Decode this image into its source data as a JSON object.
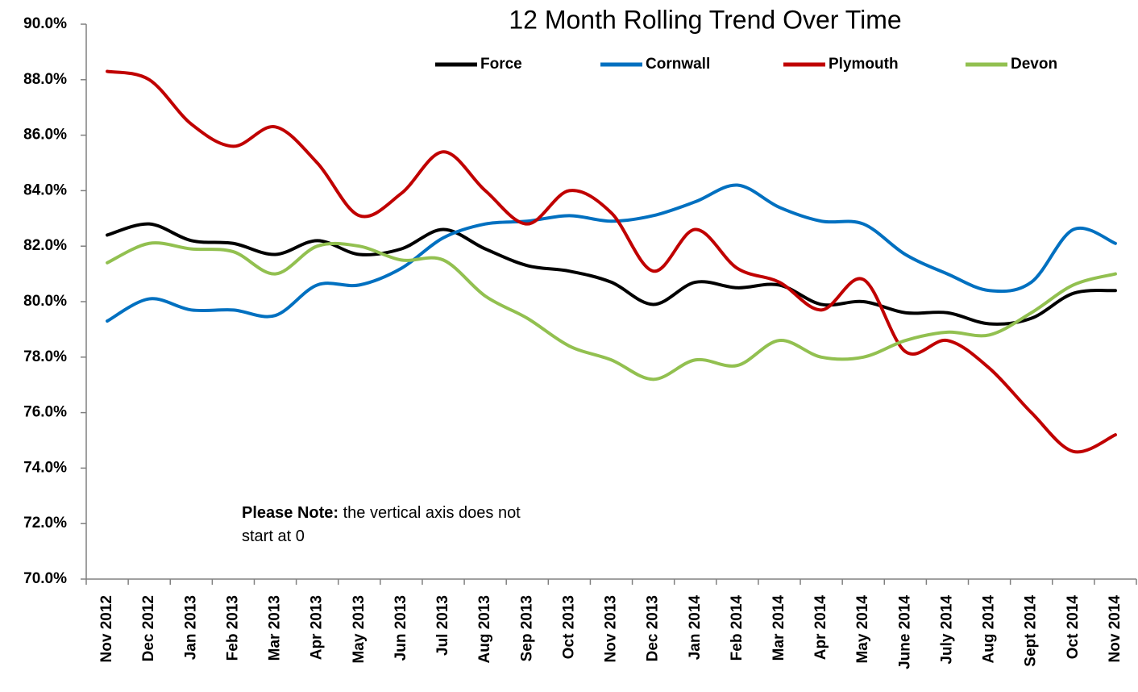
{
  "chart_data": {
    "type": "line",
    "title": "12 Month Rolling Trend Over Time",
    "annotation": {
      "bold": "Please Note:",
      "text": "the vertical axis does not start at 0"
    },
    "categories": [
      "Nov 2012",
      "Dec 2012",
      "Jan 2013",
      "Feb 2013",
      "Mar 2013",
      "Apr 2013",
      "May 2013",
      "Jun 2013",
      "Jul 2013",
      "Aug 2013",
      "Sep 2013",
      "Oct 2013",
      "Nov 2013",
      "Dec 2013",
      "Jan 2014",
      "Feb 2014",
      "Mar 2014",
      "Apr 2014",
      "May 2014",
      "June 2014",
      "July 2014",
      "Aug 2014",
      "Sept 2014",
      "Oct 2014",
      "Nov 2014"
    ],
    "series": [
      {
        "name": "Force",
        "color": "#000000",
        "values": [
          82.4,
          82.8,
          82.2,
          82.1,
          81.7,
          82.2,
          81.7,
          81.9,
          82.6,
          81.9,
          81.3,
          81.1,
          80.7,
          79.9,
          80.7,
          80.5,
          80.6,
          79.9,
          80.0,
          79.6,
          79.6,
          79.2,
          79.4,
          80.3,
          80.4
        ]
      },
      {
        "name": "Cornwall",
        "color": "#0070c0",
        "values": [
          79.3,
          80.1,
          79.7,
          79.7,
          79.5,
          80.6,
          80.6,
          81.2,
          82.3,
          82.8,
          82.9,
          83.1,
          82.9,
          83.1,
          83.6,
          84.2,
          83.4,
          82.9,
          82.8,
          81.7,
          81.0,
          80.4,
          80.7,
          82.6,
          82.1
        ]
      },
      {
        "name": "Plymouth",
        "color": "#c00000",
        "values": [
          88.3,
          88.0,
          86.4,
          85.6,
          86.3,
          85.0,
          83.1,
          83.9,
          85.4,
          84.0,
          82.8,
          84.0,
          83.2,
          81.1,
          82.6,
          81.2,
          80.7,
          79.7,
          80.8,
          78.2,
          78.6,
          77.6,
          76.0,
          74.6,
          75.2
        ]
      },
      {
        "name": "Devon",
        "color": "#92c050",
        "values": [
          81.4,
          82.1,
          81.9,
          81.8,
          81.0,
          82.0,
          82.0,
          81.5,
          81.5,
          80.2,
          79.4,
          78.4,
          77.9,
          77.2,
          77.9,
          77.7,
          78.6,
          78.0,
          78.0,
          78.6,
          78.9,
          78.8,
          79.6,
          80.6,
          81.0
        ]
      }
    ],
    "ylim": [
      70,
      90
    ],
    "yticks": [
      {
        "value": 70,
        "label": "70.0%"
      },
      {
        "value": 72,
        "label": "72.0%"
      },
      {
        "value": 74,
        "label": "74.0%"
      },
      {
        "value": 76,
        "label": "76.0%"
      },
      {
        "value": 78,
        "label": "78.0%"
      },
      {
        "value": 80,
        "label": "80.0%"
      },
      {
        "value": 82,
        "label": "82.0%"
      },
      {
        "value": 84,
        "label": "84.0%"
      },
      {
        "value": 86,
        "label": "86.0%"
      },
      {
        "value": 88,
        "label": "88.0%"
      },
      {
        "value": 90,
        "label": "90.0%"
      }
    ],
    "legend": "top",
    "smooth": true
  }
}
